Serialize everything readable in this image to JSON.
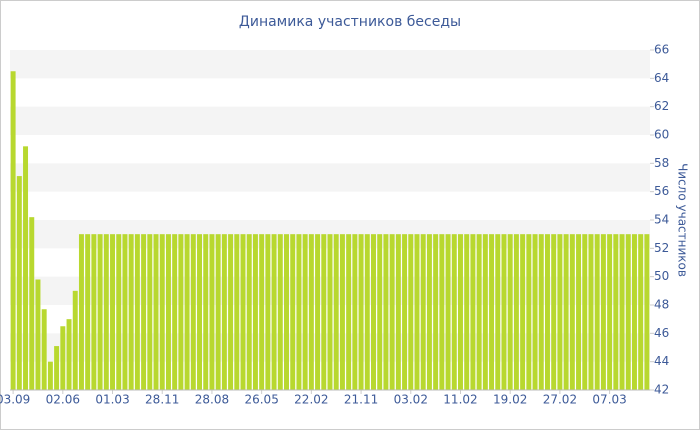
{
  "chart_data": {
    "type": "bar",
    "title": "Динамика участников беседы",
    "y_label": "Число участников",
    "categories": [
      "03.09",
      null,
      null,
      null,
      null,
      null,
      null,
      null,
      "02.06",
      null,
      null,
      null,
      null,
      null,
      null,
      null,
      "01.03",
      null,
      null,
      null,
      null,
      null,
      null,
      null,
      "28.11",
      null,
      null,
      null,
      null,
      null,
      null,
      null,
      "28.08",
      null,
      null,
      null,
      null,
      null,
      null,
      null,
      "26.05",
      null,
      null,
      null,
      null,
      null,
      null,
      null,
      "22.02",
      null,
      null,
      null,
      null,
      null,
      null,
      null,
      "21.11",
      null,
      null,
      null,
      null,
      null,
      null,
      null,
      "03.02",
      null,
      null,
      null,
      null,
      null,
      null,
      null,
      "11.02",
      null,
      null,
      null,
      null,
      null,
      null,
      null,
      "19.02",
      null,
      null,
      null,
      null,
      null,
      null,
      null,
      "27.02",
      null,
      null,
      null,
      null,
      null,
      null,
      null,
      "07.03",
      null,
      null,
      null,
      null,
      null,
      null
    ],
    "values": [
      64.5,
      57.1,
      59.2,
      54.2,
      49.8,
      47.7,
      44,
      45.1,
      46.5,
      47,
      49,
      53,
      53,
      53,
      53,
      53,
      53,
      53,
      53,
      53,
      53,
      53,
      53,
      53,
      53,
      53,
      53,
      53,
      53,
      53,
      53,
      53,
      53,
      53,
      53,
      53,
      53,
      53,
      53,
      53,
      53,
      53,
      53,
      53,
      53,
      53,
      53,
      53,
      53,
      53,
      53,
      53,
      53,
      53,
      53,
      53,
      53,
      53,
      53,
      53,
      53,
      53,
      53,
      53,
      53,
      53,
      53,
      53,
      53,
      53,
      53,
      53,
      53,
      53,
      53,
      53,
      53,
      53,
      53,
      53,
      53,
      53,
      53,
      53,
      53,
      53,
      53,
      53,
      53,
      53,
      53,
      53,
      53,
      53,
      53,
      53,
      53,
      53,
      53,
      53,
      53,
      53,
      53
    ],
    "color": "#b8d82f",
    "ylim": [
      42,
      66
    ],
    "yticks": [
      42,
      44,
      46,
      48,
      50,
      52,
      54,
      56,
      58,
      60,
      62,
      64,
      66
    ],
    "y_axis_side": "right",
    "grid": "bands"
  }
}
